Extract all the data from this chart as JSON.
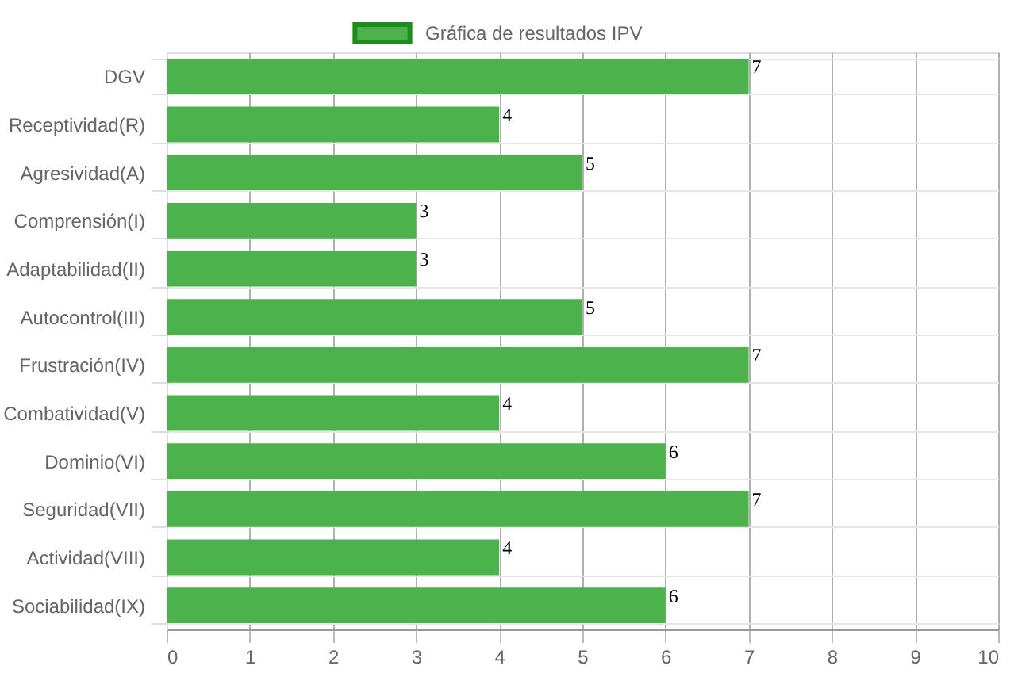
{
  "chart_data": {
    "type": "bar",
    "orientation": "horizontal",
    "categories": [
      "DGV",
      "Receptividad(R)",
      "Agresividad(A)",
      "Comprensión(I)",
      "Adaptabilidad(II)",
      "Autocontrol(III)",
      "Frustración(IV)",
      "Combatividad(V)",
      "Dominio(VI)",
      "Seguridad(VII)",
      "Actividad(VIII)",
      "Sociabilidad(IX)"
    ],
    "series": [
      {
        "name": "Gráfica de resultados IPV",
        "color": "#4cb34c",
        "values": [
          7,
          4,
          5,
          3,
          3,
          5,
          7,
          4,
          6,
          7,
          4,
          6
        ]
      }
    ],
    "xlim": [
      0,
      10
    ],
    "xticks": [
      0,
      1,
      2,
      3,
      4,
      5,
      6,
      7,
      8,
      9,
      10
    ],
    "grid": true,
    "legend": "top",
    "data_labels": true
  }
}
